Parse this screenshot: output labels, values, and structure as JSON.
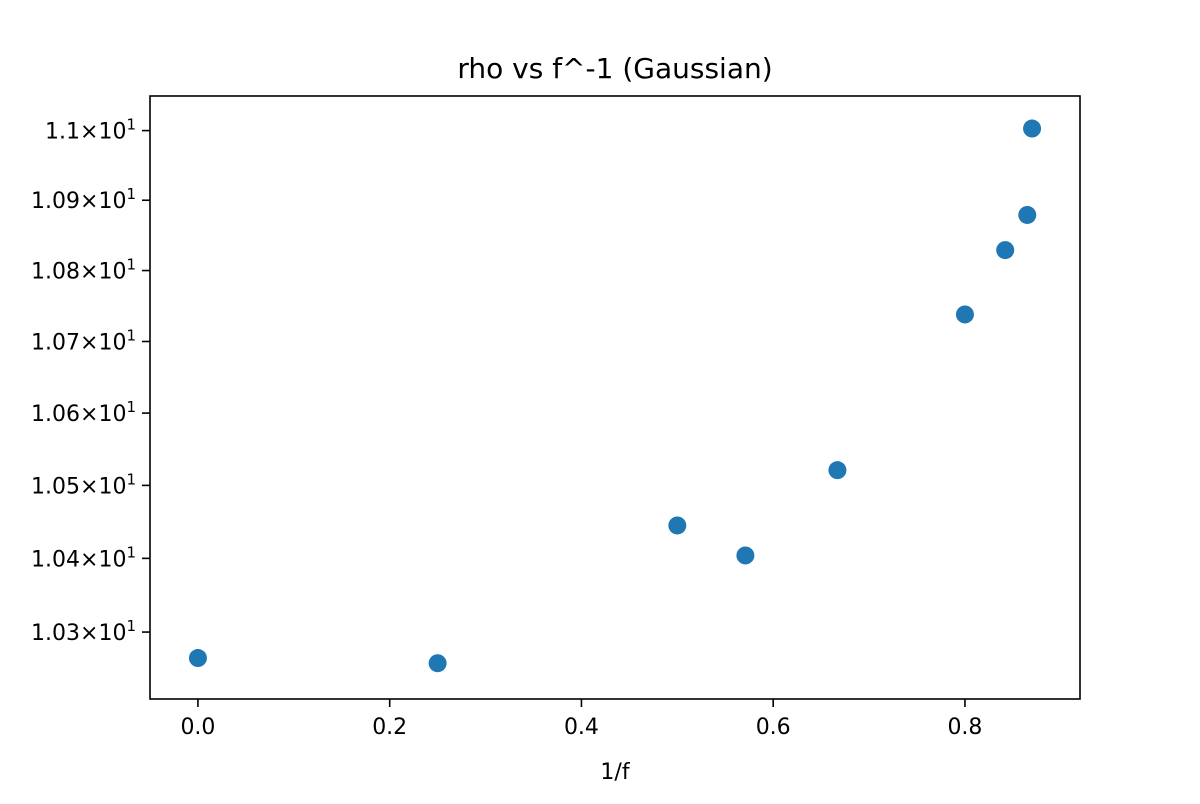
{
  "chart_data": {
    "type": "scatter",
    "title": "rho vs f^-1 (Gaussian)",
    "xlabel": "1/f",
    "ylabel": "",
    "xlim": [
      -0.05,
      0.92
    ],
    "ylim": [
      10.21,
      11.05
    ],
    "y_scale": "log",
    "grid": false,
    "legend": "none",
    "marker_color": "#1f77b4",
    "x_ticks": [
      {
        "value": 0.0,
        "label": "0.0"
      },
      {
        "value": 0.2,
        "label": "0.2"
      },
      {
        "value": 0.4,
        "label": "0.4"
      },
      {
        "value": 0.6,
        "label": "0.6"
      },
      {
        "value": 0.8,
        "label": "0.8"
      }
    ],
    "y_ticks": [
      {
        "value": 10.3,
        "mantissa": "1.03",
        "base": "10",
        "exponent": "1"
      },
      {
        "value": 10.4,
        "mantissa": "1.04",
        "base": "10",
        "exponent": "1"
      },
      {
        "value": 10.5,
        "mantissa": "1.05",
        "base": "10",
        "exponent": "1"
      },
      {
        "value": 10.6,
        "mantissa": "1.06",
        "base": "10",
        "exponent": "1"
      },
      {
        "value": 10.7,
        "mantissa": "1.07",
        "base": "10",
        "exponent": "1"
      },
      {
        "value": 10.8,
        "mantissa": "1.08",
        "base": "10",
        "exponent": "1"
      },
      {
        "value": 10.9,
        "mantissa": "1.09",
        "base": "10",
        "exponent": "1"
      },
      {
        "value": 11.0,
        "mantissa": "1.1",
        "base": "10",
        "exponent": "1"
      }
    ],
    "points": [
      {
        "x": 0.0,
        "y": 10.265
      },
      {
        "x": 0.25,
        "y": 10.258
      },
      {
        "x": 0.5,
        "y": 10.445
      },
      {
        "x": 0.571,
        "y": 10.404
      },
      {
        "x": 0.667,
        "y": 10.521
      },
      {
        "x": 0.8,
        "y": 10.738
      },
      {
        "x": 0.842,
        "y": 10.829
      },
      {
        "x": 0.865,
        "y": 10.879
      },
      {
        "x": 0.87,
        "y": 11.003
      }
    ]
  }
}
